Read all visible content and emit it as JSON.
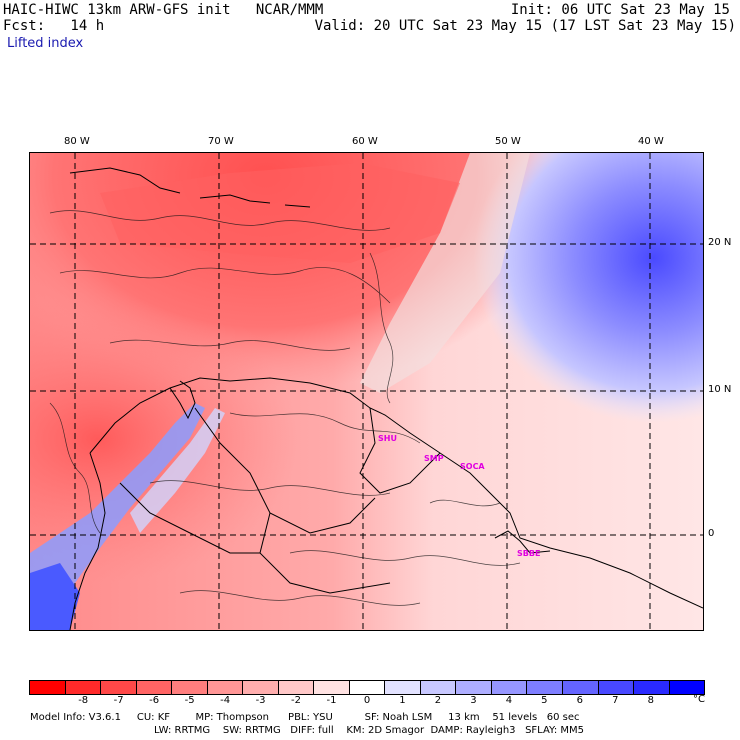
{
  "header": {
    "line1_left": "HAIC-HIWC 13km ARW-GFS init   NCAR/MMM",
    "line1_right": "Init: 06 UTC Sat 23 May 15",
    "line2_left": "Fcst:   14 h",
    "line2_right": "Valid: 20 UTC Sat 23 May 15 (17 LST Sat 23 May 15)",
    "field": "Lifted index"
  },
  "axes": {
    "longitude_labels": [
      "80 W",
      "70 W",
      "60 W",
      "50 W",
      "40 W"
    ],
    "latitude_labels": [
      "20 N",
      "10 N",
      "0"
    ]
  },
  "sites": [
    "SHU",
    "SMP",
    "SOCA",
    "SBBE"
  ],
  "colorbar": {
    "colors": [
      "#ff0000",
      "#ff2a2a",
      "#ff4848",
      "#ff6464",
      "#ff7e7e",
      "#ff9696",
      "#ffaeae",
      "#ffc8c8",
      "#ffe2e2",
      "#ffffff",
      "#e2e2ff",
      "#c8c8ff",
      "#aeaeff",
      "#9696ff",
      "#7e7eff",
      "#6464ff",
      "#4848ff",
      "#2a2aff",
      "#0000ff"
    ],
    "labels": [
      "-8",
      "-7",
      "-6",
      "-5",
      "-4",
      "-3",
      "-2",
      "-1",
      "0",
      "1",
      "2",
      "3",
      "4",
      "5",
      "6",
      "7",
      "8"
    ],
    "unit": "°C"
  },
  "footer": {
    "line1": "Model Info: V3.6.1     CU: KF        MP: Thompson      PBL: YSU          SF: Noah LSM     13 km    51 levels   60 sec",
    "line2": "LW: RRTMG    SW: RRTMG   DIFF: full    KM: 2D Smagor  DAMP: Rayleigh3   SFLAY: MM5"
  }
}
